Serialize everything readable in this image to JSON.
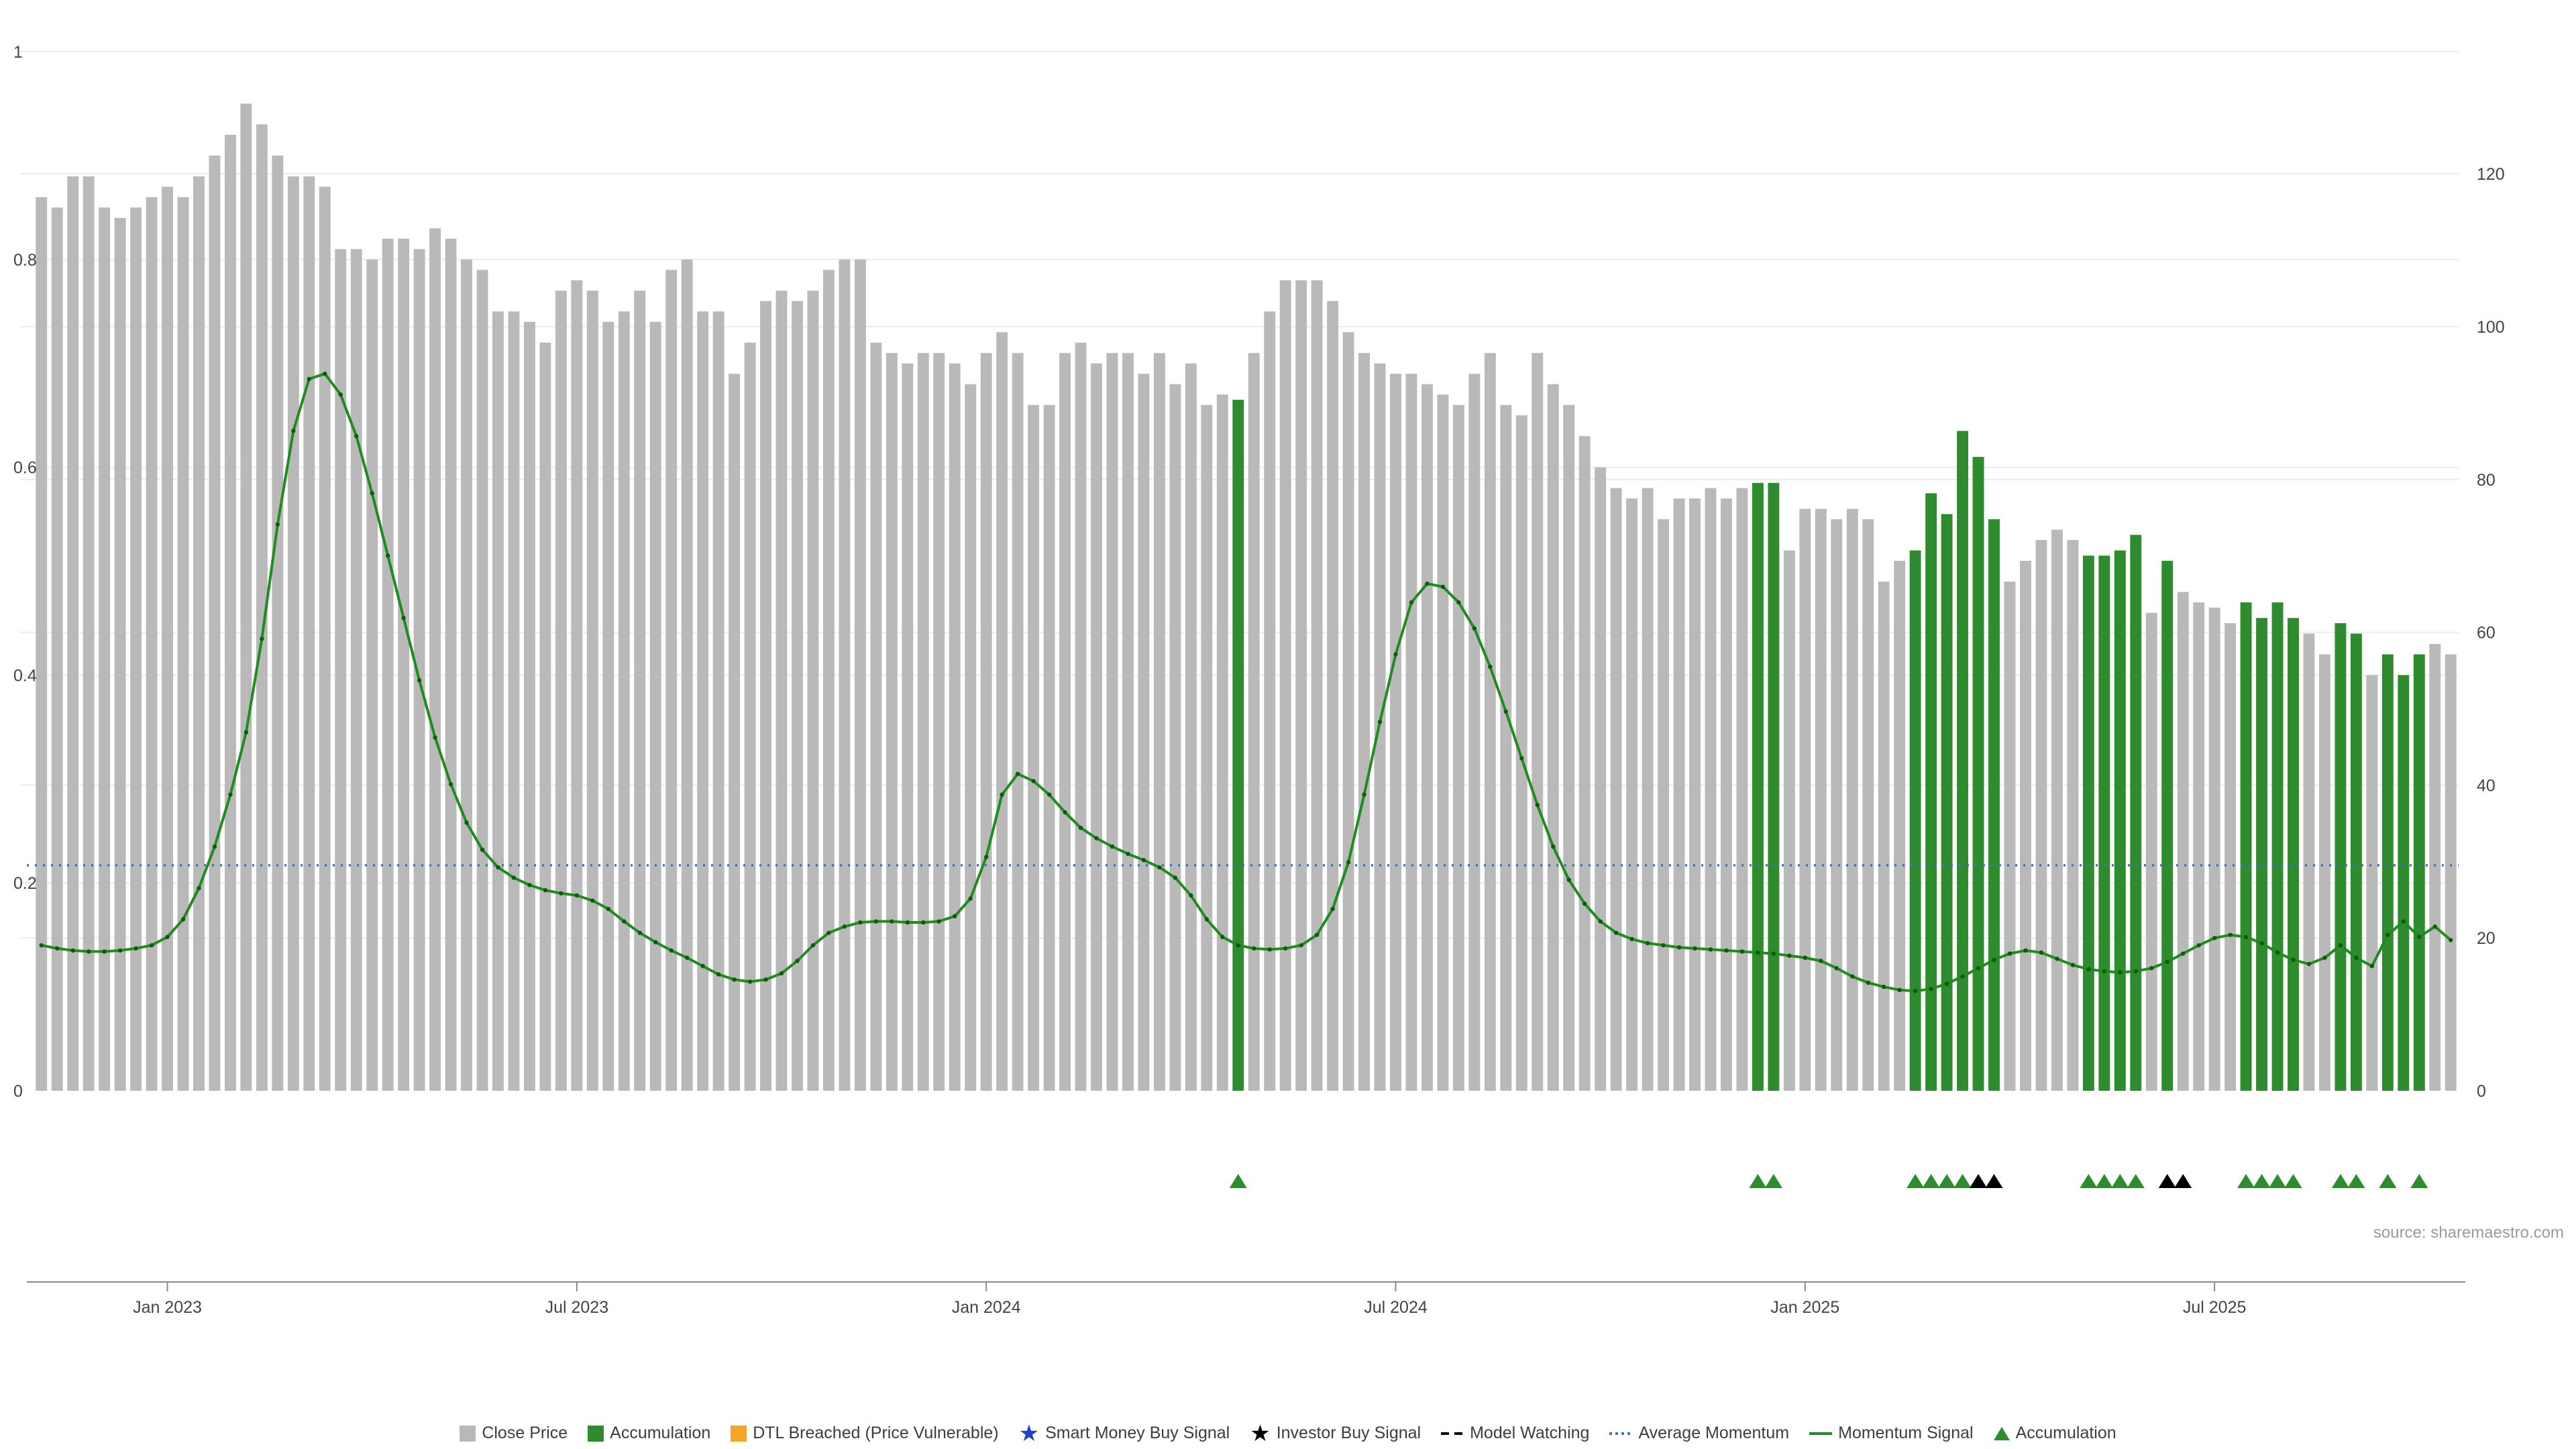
{
  "chart_data": {
    "type": "bar",
    "title": "",
    "source": "source: sharemaestro.com",
    "x_tick_labels": [
      "Jan 2023",
      "Jul 2023",
      "Jan 2024",
      "Jul 2024",
      "Jan 2025",
      "Jul 2025"
    ],
    "x_tick_indexes": [
      8,
      34,
      60,
      86,
      112,
      138
    ],
    "left_axis": {
      "ticks": [
        0,
        0.2,
        0.4,
        0.6,
        0.8,
        1
      ],
      "range": [
        0,
        1.02
      ]
    },
    "right_axis": {
      "ticks": [
        0,
        20,
        40,
        60,
        80,
        100,
        120
      ],
      "max_at_top": 136
    },
    "colors": {
      "close_price": "#b9b9b9",
      "accumulation": "#2e8b2e",
      "momentum_signal": "#1e8c1e",
      "momentum_dot": "#0c5c0c",
      "average_momentum": "#4a72a8",
      "dtl_breached": "#f5a623",
      "smart_money": "#2040d0",
      "investor_buy": "#000000",
      "grid": "#ececec",
      "axis_text": "#444444",
      "axis_line": "#8a8a8a"
    },
    "series": [
      {
        "name": "Close Price",
        "type": "bar",
        "values": [
          0.86,
          0.85,
          0.88,
          0.88,
          0.85,
          0.84,
          0.85,
          0.86,
          0.87,
          0.86,
          0.88,
          0.9,
          0.92,
          0.95,
          0.93,
          0.9,
          0.88,
          0.88,
          0.87,
          0.81,
          0.81,
          0.8,
          0.82,
          0.82,
          0.81,
          0.83,
          0.82,
          0.8,
          0.79,
          0.75,
          0.75,
          0.74,
          0.72,
          0.77,
          0.78,
          0.77,
          0.74,
          0.75,
          0.77,
          0.74,
          0.79,
          0.8,
          0.75,
          0.75,
          0.69,
          0.72,
          0.76,
          0.77,
          0.76,
          0.77,
          0.79,
          0.8,
          0.8,
          0.72,
          0.71,
          0.7,
          0.71,
          0.71,
          0.7,
          0.68,
          0.71,
          0.73,
          0.71,
          0.66,
          0.66,
          0.71,
          0.72,
          0.7,
          0.71,
          0.71,
          0.69,
          0.71,
          0.68,
          0.7,
          0.66,
          0.67,
          0.665,
          0.71,
          0.75,
          0.78,
          0.78,
          0.78,
          0.76,
          0.73,
          0.71,
          0.7,
          0.69,
          0.69,
          0.68,
          0.67,
          0.66,
          0.69,
          0.71,
          0.66,
          0.65,
          0.71,
          0.68,
          0.66,
          0.63,
          0.6,
          0.58,
          0.57,
          0.58,
          0.55,
          0.57,
          0.57,
          0.58,
          0.57,
          0.58,
          0.585,
          0.585,
          0.52,
          0.56,
          0.56,
          0.55,
          0.56,
          0.55,
          0.49,
          0.51,
          0.52,
          0.575,
          0.555,
          0.635,
          0.61,
          0.55,
          0.49,
          0.51,
          0.53,
          0.54,
          0.53,
          0.515,
          0.515,
          0.52,
          0.535,
          0.46,
          0.51,
          0.48,
          0.47,
          0.465,
          0.45,
          0.47,
          0.455,
          0.47,
          0.455,
          0.44,
          0.42,
          0.45,
          0.44,
          0.4,
          0.42,
          0.4,
          0.42,
          0.43,
          0.42
        ]
      },
      {
        "name": "Accumulation",
        "type": "bar-highlight",
        "indexes": [
          76,
          109,
          110,
          119,
          120,
          121,
          122,
          123,
          124,
          130,
          131,
          132,
          133,
          135,
          140,
          141,
          142,
          143,
          146,
          147,
          149,
          150,
          151
        ]
      },
      {
        "name": "Momentum Signal",
        "type": "line",
        "values": [
          0.14,
          0.137,
          0.135,
          0.134,
          0.134,
          0.135,
          0.137,
          0.14,
          0.148,
          0.165,
          0.195,
          0.235,
          0.285,
          0.345,
          0.435,
          0.545,
          0.635,
          0.685,
          0.69,
          0.67,
          0.63,
          0.575,
          0.515,
          0.455,
          0.395,
          0.34,
          0.295,
          0.258,
          0.232,
          0.215,
          0.205,
          0.198,
          0.193,
          0.19,
          0.188,
          0.183,
          0.175,
          0.163,
          0.152,
          0.143,
          0.135,
          0.128,
          0.12,
          0.112,
          0.107,
          0.105,
          0.107,
          0.113,
          0.125,
          0.14,
          0.152,
          0.158,
          0.162,
          0.163,
          0.163,
          0.162,
          0.162,
          0.163,
          0.168,
          0.185,
          0.225,
          0.285,
          0.305,
          0.298,
          0.285,
          0.268,
          0.253,
          0.243,
          0.235,
          0.228,
          0.222,
          0.215,
          0.205,
          0.188,
          0.165,
          0.148,
          0.14,
          0.137,
          0.136,
          0.137,
          0.14,
          0.15,
          0.175,
          0.22,
          0.285,
          0.355,
          0.42,
          0.47,
          0.488,
          0.485,
          0.47,
          0.445,
          0.408,
          0.365,
          0.32,
          0.275,
          0.235,
          0.203,
          0.18,
          0.163,
          0.152,
          0.146,
          0.142,
          0.14,
          0.138,
          0.137,
          0.136,
          0.135,
          0.134,
          0.133,
          0.132,
          0.13,
          0.128,
          0.125,
          0.118,
          0.11,
          0.104,
          0.1,
          0.097,
          0.096,
          0.098,
          0.103,
          0.11,
          0.118,
          0.126,
          0.132,
          0.135,
          0.133,
          0.127,
          0.121,
          0.117,
          0.115,
          0.114,
          0.115,
          0.118,
          0.124,
          0.132,
          0.14,
          0.147,
          0.15,
          0.148,
          0.142,
          0.133,
          0.126,
          0.122,
          0.128,
          0.14,
          0.128,
          0.12,
          0.15,
          0.163,
          0.148,
          0.158,
          0.145
        ]
      },
      {
        "name": "Average Momentum",
        "type": "dotted-hline",
        "value": 0.217
      }
    ],
    "markers": {
      "accumulation": {
        "symbol": "triangle-up",
        "indexes": [
          76,
          109,
          110,
          119,
          120,
          121,
          122,
          130,
          131,
          132,
          133,
          140,
          141,
          142,
          143,
          146,
          147,
          149,
          151
        ]
      },
      "investor_buy": {
        "symbol": "triangle-up",
        "indexes": [
          123,
          124,
          135,
          136
        ]
      }
    }
  },
  "legend": {
    "items": [
      {
        "label": "Close Price",
        "swatch": "square",
        "color": "#b9b9b9"
      },
      {
        "label": "Accumulation",
        "swatch": "square",
        "color": "#2e8b2e"
      },
      {
        "label": "DTL Breached (Price Vulnerable)",
        "swatch": "square",
        "color": "#f5a623"
      },
      {
        "label": "Smart Money Buy Signal",
        "swatch": "star",
        "color": "#2040d0"
      },
      {
        "label": "Investor Buy Signal",
        "swatch": "star",
        "color": "#000000"
      },
      {
        "label": "Model Watching",
        "swatch": "dash",
        "color": "#000000"
      },
      {
        "label": "Average Momentum",
        "swatch": "dotted",
        "color": "#4a72a8"
      },
      {
        "label": "Momentum Signal",
        "swatch": "line",
        "color": "#1e8c1e"
      },
      {
        "label": "Accumulation",
        "swatch": "triangle",
        "color": "#2e8b2e"
      }
    ]
  }
}
